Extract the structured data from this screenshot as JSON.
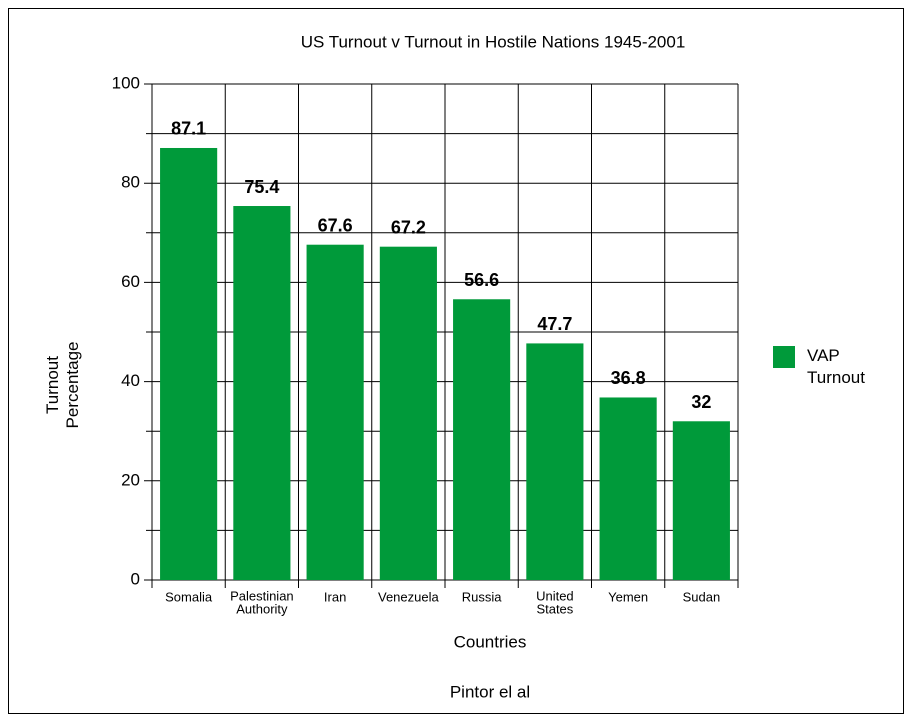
{
  "chart_data": {
    "type": "bar",
    "title": "US Turnout v Turnout in Hostile Nations 1945-2001",
    "x_label": "Countries",
    "y_label": "Turnout Percentage",
    "caption": "Pintor el al",
    "categories": [
      "Somalia",
      "Palestinian Authority",
      "Iran",
      "Venezuela",
      "Russia",
      "United States",
      "Yemen",
      "Sudan"
    ],
    "series": [
      {
        "name": "VAP Turnout",
        "color": "#009a3a",
        "values": [
          87.1,
          75.4,
          67.6,
          67.2,
          56.6,
          47.7,
          36.8,
          32
        ]
      }
    ],
    "ylim": [
      0,
      100
    ],
    "yticks": [
      0,
      20,
      40,
      60,
      80,
      100
    ],
    "minor_yticks": [
      10,
      30,
      50,
      70,
      90
    ],
    "grid": true,
    "legend": "right"
  }
}
